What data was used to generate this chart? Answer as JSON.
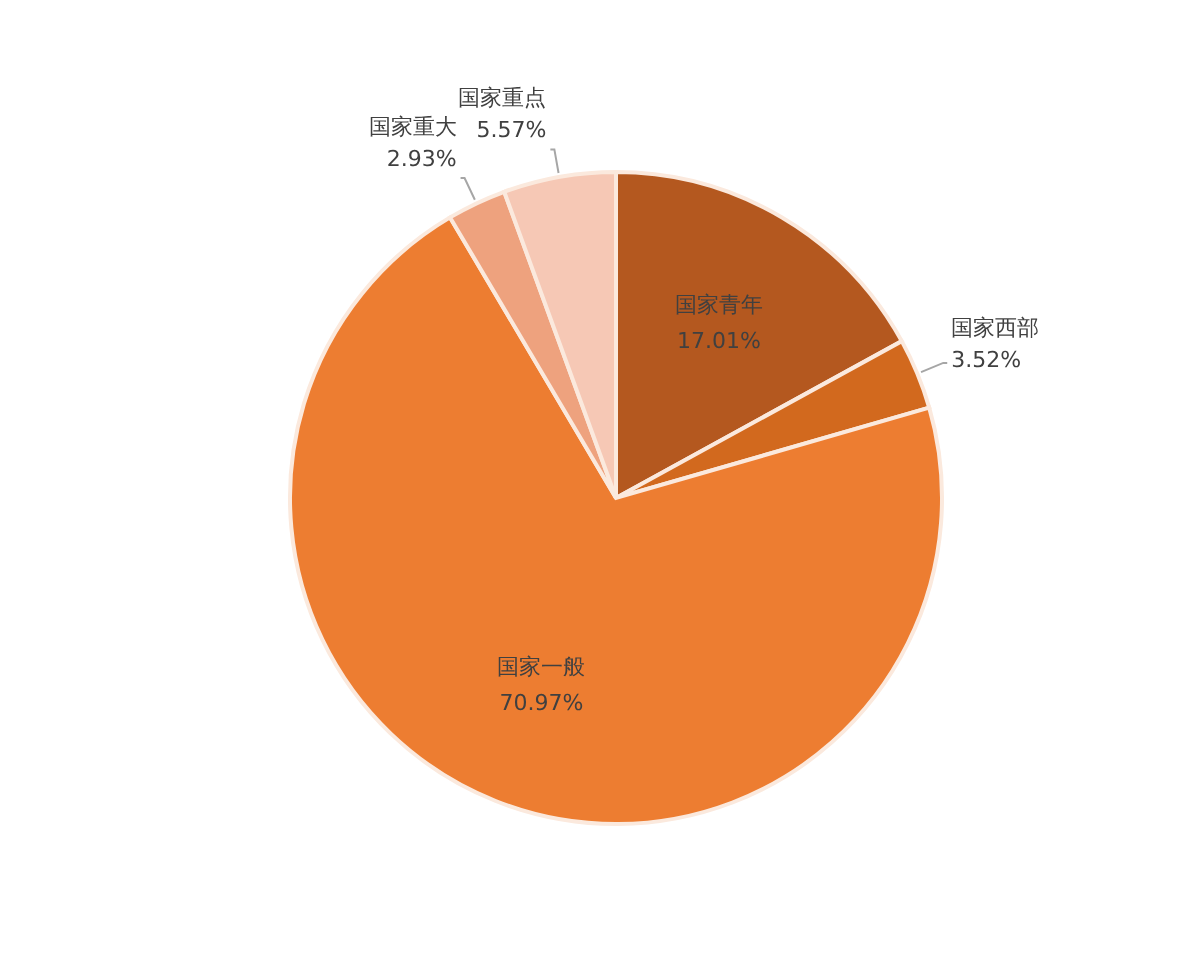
{
  "chart_data": {
    "type": "pie",
    "categories": [
      "国家青年",
      "国家西部",
      "国家一般",
      "国家重大",
      "国家重点"
    ],
    "values": [
      17.01,
      3.52,
      70.97,
      2.93,
      5.57
    ],
    "value_labels": [
      "17.01%",
      "3.52%",
      "70.97%",
      "2.93%",
      "5.57%"
    ],
    "colors": [
      "#b4581f",
      "#d2691e",
      "#ed7d31",
      "#eea27e",
      "#f6c8b5"
    ]
  }
}
